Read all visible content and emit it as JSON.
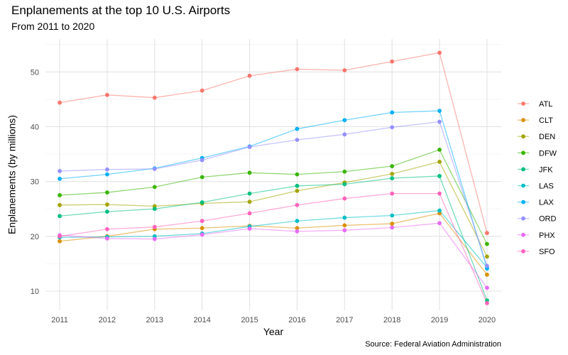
{
  "title": "Enplanements at the top 10 U.S. Airports",
  "subtitle": "From 2011 to 2020",
  "caption": "Source: Federal Aviation Administration",
  "chart_data": {
    "type": "line",
    "xlabel": "Year",
    "ylabel": "Enplanements (by millions)",
    "x": [
      2011,
      2012,
      2013,
      2014,
      2015,
      2016,
      2017,
      2018,
      2019,
      2020
    ],
    "xlim": [
      2010.7,
      2020.3
    ],
    "ylim": [
      6.5,
      56
    ],
    "yticks": [
      10,
      20,
      30,
      40,
      50
    ],
    "grid": true,
    "legend_position": "right",
    "series": [
      {
        "name": "ATL",
        "color": "#F8766D",
        "values": [
          44.4,
          45.8,
          45.3,
          46.6,
          49.3,
          50.5,
          50.3,
          51.9,
          53.5,
          20.6
        ]
      },
      {
        "name": "CLT",
        "color": "#D89000",
        "values": [
          19.1,
          20.0,
          21.3,
          21.5,
          21.9,
          21.5,
          22.0,
          22.3,
          24.2,
          13.0
        ]
      },
      {
        "name": "DEN",
        "color": "#A3A500",
        "values": [
          25.7,
          25.8,
          25.5,
          26.0,
          26.3,
          28.3,
          29.8,
          31.4,
          33.6,
          16.3
        ]
      },
      {
        "name": "DFW",
        "color": "#39B600",
        "values": [
          27.5,
          28.0,
          29.0,
          30.8,
          31.6,
          31.3,
          31.8,
          32.8,
          35.8,
          18.6
        ]
      },
      {
        "name": "JFK",
        "color": "#00BF7D",
        "values": [
          23.7,
          24.5,
          25.0,
          26.2,
          27.8,
          29.2,
          29.5,
          30.6,
          31.0,
          8.3
        ]
      },
      {
        "name": "LAS",
        "color": "#00BFC4",
        "values": [
          19.8,
          19.9,
          20.0,
          20.5,
          21.8,
          22.8,
          23.4,
          23.8,
          24.7,
          14.3
        ]
      },
      {
        "name": "LAX",
        "color": "#00B0F6",
        "values": [
          30.5,
          31.3,
          32.4,
          34.3,
          36.4,
          39.6,
          41.2,
          42.6,
          42.9,
          14.1
        ]
      },
      {
        "name": "ORD",
        "color": "#9590FF",
        "values": [
          31.9,
          32.2,
          32.3,
          33.9,
          36.3,
          37.6,
          38.6,
          39.9,
          40.9,
          14.6
        ]
      },
      {
        "name": "PHX",
        "color": "#E76BF3",
        "values": [
          20.2,
          19.6,
          19.5,
          20.3,
          21.4,
          20.9,
          21.1,
          21.6,
          22.4,
          10.6
        ]
      },
      {
        "name": "SFO",
        "color": "#FF62BC",
        "values": [
          20.0,
          21.3,
          21.7,
          22.8,
          24.2,
          25.7,
          26.9,
          27.8,
          27.8,
          7.8
        ]
      }
    ]
  }
}
